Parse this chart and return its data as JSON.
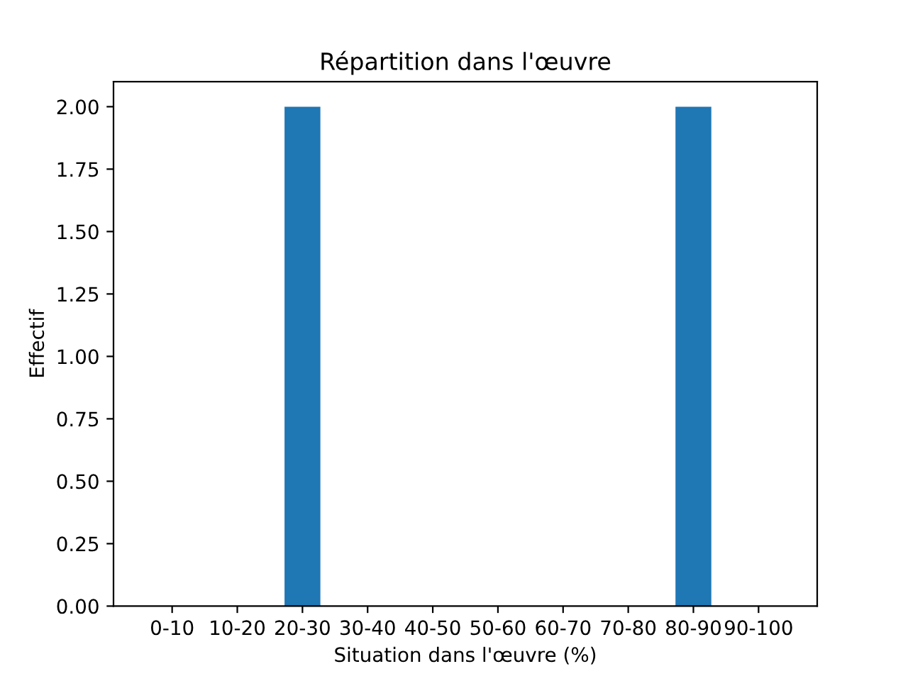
{
  "chart_data": {
    "type": "bar",
    "title": "Répartition dans l'œuvre",
    "xlabel": "Situation dans l'œuvre (%)",
    "ylabel": "Effectif",
    "categories": [
      "0-10",
      "10-20",
      "20-30",
      "30-40",
      "40-50",
      "50-60",
      "60-70",
      "70-80",
      "80-90",
      "90-100"
    ],
    "values": [
      0,
      0,
      2,
      0,
      0,
      0,
      0,
      0,
      2,
      0
    ],
    "color": "#1f77b4",
    "ylim": [
      0,
      2.1
    ],
    "yticks": [
      {
        "value": 0,
        "label": "0.00"
      },
      {
        "value": 0.25,
        "label": "0.25"
      },
      {
        "value": 0.5,
        "label": "0.50"
      },
      {
        "value": 0.75,
        "label": "0.75"
      },
      {
        "value": 1,
        "label": "1.00"
      },
      {
        "value": 1.25,
        "label": "1.25"
      },
      {
        "value": 1.5,
        "label": "1.50"
      },
      {
        "value": 1.75,
        "label": "1.75"
      },
      {
        "value": 2,
        "label": "2.00"
      }
    ],
    "grid": false,
    "legend": false
  }
}
